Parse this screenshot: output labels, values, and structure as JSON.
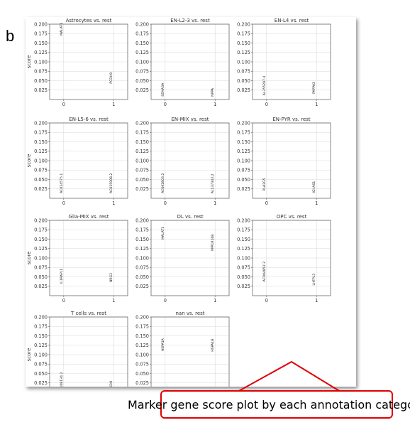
{
  "panel_letter": "b",
  "caption": "Marker gene score plot by each annotation category",
  "colors": {
    "callout": "#e00000",
    "axes": "#555555",
    "grid": "#d9d9d9",
    "text": "#333333"
  },
  "chart_data": [
    {
      "type": "scatter",
      "title": "Astrocytes vs. rest",
      "ylabel": "score",
      "ylim": [
        0.0,
        0.2
      ],
      "xticks": [
        "0",
        "1"
      ],
      "yticks": [
        "0.025",
        "0.050",
        "0.075",
        "0.100",
        "0.125",
        "0.150",
        "0.175",
        "0.200"
      ],
      "grid": true,
      "points": [
        {
          "x": 0,
          "y": 0.187,
          "label": "MALAT1"
        },
        {
          "x": 1,
          "y": 0.057,
          "label": "PCDH9"
        }
      ]
    },
    {
      "type": "scatter",
      "title": "EN-L2-3 vs. rest",
      "ylim": [
        0.0,
        0.2
      ],
      "xticks": [
        "0",
        "1"
      ],
      "yticks": [
        "0.025",
        "0.050",
        "0.075",
        "0.100",
        "0.125",
        "0.150",
        "0.175",
        "0.200"
      ],
      "grid": true,
      "points": [
        {
          "x": 0,
          "y": 0.026,
          "label": "SEMA3A"
        },
        {
          "x": 1,
          "y": 0.019,
          "label": "NPPA"
        }
      ]
    },
    {
      "type": "scatter",
      "title": "EN-L4 vs. rest",
      "ylim": [
        0.0,
        0.2
      ],
      "xticks": [
        "0",
        "1"
      ],
      "yticks": [
        "0.025",
        "0.050",
        "0.075",
        "0.100",
        "0.125",
        "0.150",
        "0.175",
        "0.200"
      ],
      "grid": true,
      "points": [
        {
          "x": 0,
          "y": 0.037,
          "label": "AL355297.4"
        },
        {
          "x": 1,
          "y": 0.031,
          "label": "PAPPA2"
        }
      ]
    },
    {
      "type": "scatter",
      "title": "EN-L5-6 vs. rest",
      "ylabel": "score",
      "ylim": [
        0.0,
        0.2
      ],
      "xticks": [
        "0",
        "1"
      ],
      "yticks": [
        "0.025",
        "0.050",
        "0.075",
        "0.100",
        "0.125",
        "0.150",
        "0.175",
        "0.200"
      ],
      "grid": true,
      "points": [
        {
          "x": 0,
          "y": 0.04,
          "label": "AC024575.1"
        },
        {
          "x": 1,
          "y": 0.04,
          "label": "AC015908.2"
        }
      ]
    },
    {
      "type": "scatter",
      "title": "EN-MIX vs. rest",
      "ylim": [
        0.0,
        0.2
      ],
      "xticks": [
        "0",
        "1"
      ],
      "yticks": [
        "0.025",
        "0.050",
        "0.075",
        "0.100",
        "0.125",
        "0.150",
        "0.175",
        "0.200"
      ],
      "grid": true,
      "points": [
        {
          "x": 0,
          "y": 0.04,
          "label": "AC092803.2"
        },
        {
          "x": 1,
          "y": 0.039,
          "label": "AL137343.2"
        }
      ]
    },
    {
      "type": "scatter",
      "title": "EN-PYR vs. rest",
      "ylim": [
        0.0,
        0.2
      ],
      "xticks": [
        "0",
        "1"
      ],
      "yticks": [
        "0.025",
        "0.050",
        "0.075",
        "0.100",
        "0.125",
        "0.150",
        "0.175",
        "0.200"
      ],
      "grid": true,
      "points": [
        {
          "x": 0,
          "y": 0.037,
          "label": "PLA2G5"
        },
        {
          "x": 1,
          "y": 0.03,
          "label": "IGI-AS1"
        }
      ]
    },
    {
      "type": "scatter",
      "title": "Glia-MIX vs. rest",
      "ylabel": "score",
      "ylim": [
        0.0,
        0.2
      ],
      "xticks": [
        "0",
        "1"
      ],
      "yticks": [
        "0.025",
        "0.050",
        "0.075",
        "0.100",
        "0.125",
        "0.150",
        "0.175",
        "0.200"
      ],
      "grid": true,
      "points": [
        {
          "x": 0,
          "y": 0.052,
          "label": "IL1RAPL1"
        },
        {
          "x": 1,
          "y": 0.048,
          "label": "NRG3"
        }
      ]
    },
    {
      "type": "scatter",
      "title": "OL vs. rest",
      "ylim": [
        0.0,
        0.2
      ],
      "xticks": [
        "0",
        "1"
      ],
      "yticks": [
        "0.025",
        "0.050",
        "0.075",
        "0.100",
        "0.125",
        "0.150",
        "0.175",
        "0.200"
      ],
      "grid": true,
      "points": [
        {
          "x": 0,
          "y": 0.166,
          "label": "MALAT1"
        },
        {
          "x": 1,
          "y": 0.141,
          "label": "PPP1R16B"
        }
      ]
    },
    {
      "type": "scatter",
      "title": "OPC vs. rest",
      "ylim": [
        0.0,
        0.2
      ],
      "xticks": [
        "0",
        "1"
      ],
      "yticks": [
        "0.025",
        "0.050",
        "0.075",
        "0.100",
        "0.125",
        "0.150",
        "0.175",
        "0.200"
      ],
      "grid": true,
      "points": [
        {
          "x": 0,
          "y": 0.064,
          "label": "AC004852.2"
        },
        {
          "x": 1,
          "y": 0.043,
          "label": "LHFPL3"
        }
      ]
    },
    {
      "type": "scatter",
      "title": "T cells vs. rest",
      "ylabel": "score",
      "ylim": [
        0.0,
        0.2
      ],
      "xticks": [
        "0",
        "1"
      ],
      "yticks": [
        "0.025",
        "0.050",
        "0.075",
        "0.100",
        "0.125",
        "0.150",
        "0.175",
        "0.200"
      ],
      "grid": true,
      "points": [
        {
          "x": 0,
          "y": 0.027,
          "label": "AC108134.2"
        },
        {
          "x": 1,
          "y": 0.021,
          "label": "XDH"
        }
      ]
    },
    {
      "type": "scatter",
      "title": "nan vs. rest",
      "ylim": [
        0.0,
        0.2
      ],
      "xticks": [
        "0",
        "1"
      ],
      "yticks": [
        "0.025",
        "0.050",
        "0.075",
        "0.100",
        "0.125",
        "0.150",
        "0.175",
        "0.200"
      ],
      "grid": true,
      "points": [
        {
          "x": 0,
          "y": 0.126,
          "label": "HSPA1A"
        },
        {
          "x": 1,
          "y": 0.125,
          "label": "HSPA1B"
        }
      ]
    }
  ]
}
